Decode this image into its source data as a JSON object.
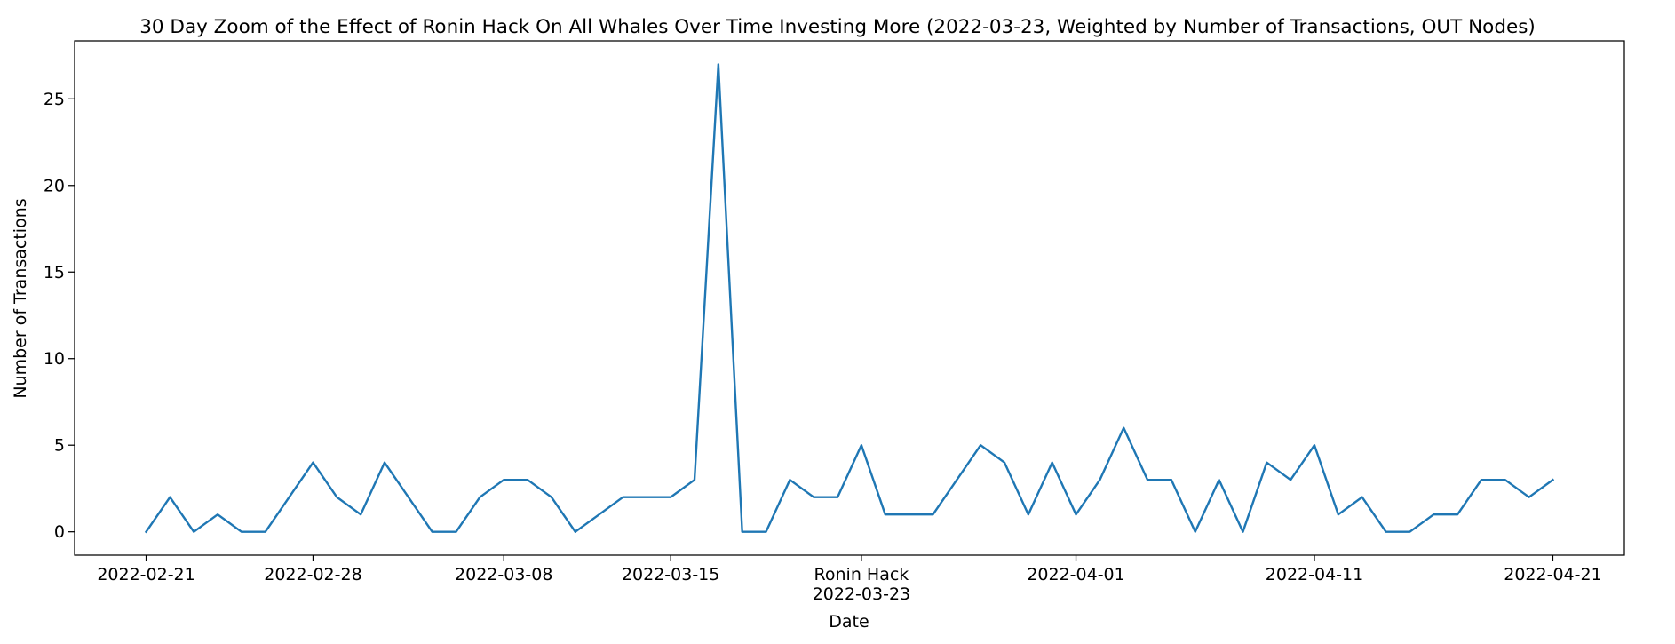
{
  "chart_data": {
    "type": "line",
    "title": "30 Day Zoom of the Effect of Ronin Hack On All Whales Over Time Investing More (2022-03-23, Weighted by Number of Transactions, OUT Nodes)",
    "xlabel": "Date",
    "ylabel": "Number of Transactions",
    "x_start": "2022-02-21",
    "x_end": "2022-04-21",
    "xlim": [
      "2022-02-18",
      "2022-04-24"
    ],
    "ylim": [
      -1.35,
      28.35
    ],
    "yticks": [
      0,
      5,
      10,
      15,
      20,
      25
    ],
    "xticks": [
      {
        "date": "2022-02-21",
        "label": "2022-02-21"
      },
      {
        "date": "2022-02-28",
        "label": "2022-02-28"
      },
      {
        "date": "2022-03-08",
        "label": "2022-03-08"
      },
      {
        "date": "2022-03-15",
        "label": "2022-03-15"
      },
      {
        "date": "2022-03-23",
        "label": "Ronin Hack\n2022-03-23"
      },
      {
        "date": "2022-04-01",
        "label": "2022-04-01"
      },
      {
        "date": "2022-04-11",
        "label": "2022-04-11"
      },
      {
        "date": "2022-04-21",
        "label": "2022-04-21"
      }
    ],
    "series": [
      {
        "color": "#1f77b4",
        "x": [
          "2022-02-21",
          "2022-02-22",
          "2022-02-23",
          "2022-02-24",
          "2022-02-25",
          "2022-02-26",
          "2022-02-27",
          "2022-02-28",
          "2022-03-01",
          "2022-03-02",
          "2022-03-03",
          "2022-03-04",
          "2022-03-05",
          "2022-03-06",
          "2022-03-07",
          "2022-03-08",
          "2022-03-09",
          "2022-03-10",
          "2022-03-11",
          "2022-03-12",
          "2022-03-13",
          "2022-03-14",
          "2022-03-15",
          "2022-03-16",
          "2022-03-17",
          "2022-03-18",
          "2022-03-19",
          "2022-03-20",
          "2022-03-21",
          "2022-03-22",
          "2022-03-23",
          "2022-03-24",
          "2022-03-25",
          "2022-03-26",
          "2022-03-27",
          "2022-03-28",
          "2022-03-29",
          "2022-03-30",
          "2022-03-31",
          "2022-04-01",
          "2022-04-02",
          "2022-04-03",
          "2022-04-04",
          "2022-04-05",
          "2022-04-06",
          "2022-04-07",
          "2022-04-08",
          "2022-04-09",
          "2022-04-10",
          "2022-04-11",
          "2022-04-12",
          "2022-04-13",
          "2022-04-14",
          "2022-04-15",
          "2022-04-16",
          "2022-04-17",
          "2022-04-18",
          "2022-04-19",
          "2022-04-20",
          "2022-04-21"
        ],
        "values": [
          0,
          2,
          0,
          1,
          0,
          0,
          2,
          4,
          2,
          1,
          4,
          2,
          0,
          0,
          2,
          3,
          3,
          2,
          0,
          1,
          2,
          2,
          2,
          3,
          27,
          0,
          0,
          3,
          2,
          2,
          5,
          1,
          1,
          1,
          3,
          5,
          4,
          1,
          4,
          1,
          3,
          6,
          3,
          3,
          0,
          3,
          0,
          4,
          3,
          5,
          1,
          2,
          0,
          0,
          1,
          1,
          3,
          3,
          2,
          3
        ]
      }
    ]
  }
}
